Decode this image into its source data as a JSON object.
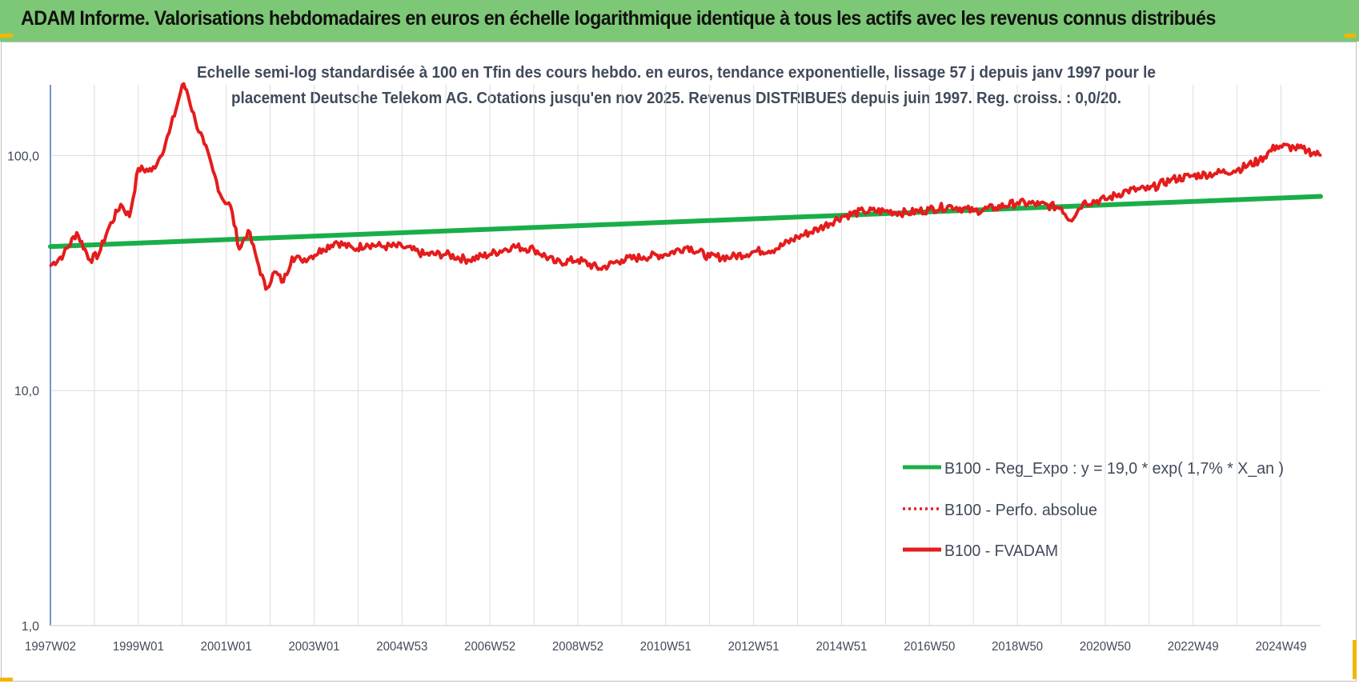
{
  "header": {
    "title": "ADAM Informe. Valorisations hebdomadaires en euros en échelle logarithmique identique à tous les actifs avec les revenus connus distribués"
  },
  "colors": {
    "header_bg": "#7dc876",
    "trend": "#1aae4a",
    "fvadam": "#e51c1c",
    "grid": "#dcdcdc",
    "axis": "#4472c4",
    "text": "#404a5a"
  },
  "chart_data": {
    "type": "line",
    "title_line1": "Echelle semi-log standardisée à 100 en Tfin des cours hebdo. en euros, tendance exponentielle, lissage 57 j depuis janv 1997 pour le",
    "title_line2": "placement Deutsche Telekom AG. Cotations jusqu'en nov 2025. Revenus DISTRIBUES depuis juin 1997. Reg. croiss. : 0,0/20.",
    "y_scale": "log",
    "ylim": [
      1,
      200
    ],
    "y_ticks": [
      {
        "value": 1,
        "label": "1,0"
      },
      {
        "value": 10,
        "label": "10,0"
      },
      {
        "value": 100,
        "label": "100,0"
      }
    ],
    "xlim": [
      1997.0,
      2025.9
    ],
    "x_ticks": [
      {
        "x": 1997.0,
        "label": "1997W02"
      },
      {
        "x": 1999.0,
        "label": "1999W01"
      },
      {
        "x": 2001.0,
        "label": "2001W01"
      },
      {
        "x": 2003.0,
        "label": "2003W01"
      },
      {
        "x": 2005.0,
        "label": "2004W53"
      },
      {
        "x": 2007.0,
        "label": "2006W52"
      },
      {
        "x": 2009.0,
        "label": "2008W52"
      },
      {
        "x": 2011.0,
        "label": "2010W51"
      },
      {
        "x": 2013.0,
        "label": "2012W51"
      },
      {
        "x": 2015.0,
        "label": "2014W51"
      },
      {
        "x": 2017.0,
        "label": "2016W50"
      },
      {
        "x": 2019.0,
        "label": "2018W50"
      },
      {
        "x": 2021.0,
        "label": "2020W50"
      },
      {
        "x": 2023.0,
        "label": "2022W49"
      },
      {
        "x": 2025.0,
        "label": "2024W49"
      }
    ],
    "legend_position": "bottom-right",
    "series": [
      {
        "name": "B100 - Reg_Expo : y = 19,0 * exp( 1,7% *  X_an )",
        "style": "solid-green",
        "x": [
          1997.0,
          2025.9
        ],
        "y": [
          41,
          67
        ]
      },
      {
        "name": "B100 - Perfo. absolue",
        "style": "dotted-red",
        "x": [],
        "y": []
      },
      {
        "name": "B100 - FVADAM",
        "style": "solid-red",
        "x": [
          1997.0,
          1997.3,
          1997.6,
          1997.9,
          1998.1,
          1998.3,
          1998.6,
          1998.8,
          1999.0,
          1999.3,
          1999.5,
          1999.7,
          1999.9,
          2000.0,
          2000.1,
          2000.3,
          2000.5,
          2000.7,
          2000.9,
          2001.1,
          2001.3,
          2001.5,
          2001.7,
          2001.9,
          2002.1,
          2002.3,
          2002.5,
          2002.7,
          2002.9,
          2003.2,
          2003.5,
          2003.9,
          2004.2,
          2004.6,
          2005.0,
          2005.5,
          2006.0,
          2006.5,
          2007.0,
          2007.5,
          2008.0,
          2008.5,
          2009.0,
          2009.5,
          2010.0,
          2010.5,
          2011.0,
          2011.5,
          2012.0,
          2012.5,
          2013.0,
          2013.5,
          2014.0,
          2014.5,
          2015.0,
          2015.5,
          2016.0,
          2016.5,
          2017.0,
          2017.5,
          2018.0,
          2018.5,
          2019.0,
          2019.5,
          2020.0,
          2020.2,
          2020.5,
          2021.0,
          2021.5,
          2022.0,
          2022.5,
          2023.0,
          2023.5,
          2024.0,
          2024.5,
          2024.9,
          2025.3,
          2025.6,
          2025.9
        ],
        "y": [
          34,
          38,
          47,
          36,
          38,
          48,
          62,
          55,
          88,
          86,
          99,
          125,
          168,
          200,
          190,
          140,
          112,
          86,
          66,
          61,
          40,
          48,
          36,
          27,
          32,
          29,
          37,
          36,
          37,
          40,
          43,
          40,
          42,
          41,
          41,
          38,
          38,
          36,
          38,
          41,
          40,
          35,
          36,
          33,
          36,
          37,
          38,
          41,
          37,
          37,
          39,
          40,
          45,
          49,
          55,
          58,
          58,
          57,
          59,
          61,
          58,
          60,
          63,
          62,
          60,
          53,
          63,
          65,
          71,
          72,
          79,
          82,
          84,
          87,
          95,
          110,
          108,
          105,
          100
        ]
      }
    ]
  }
}
